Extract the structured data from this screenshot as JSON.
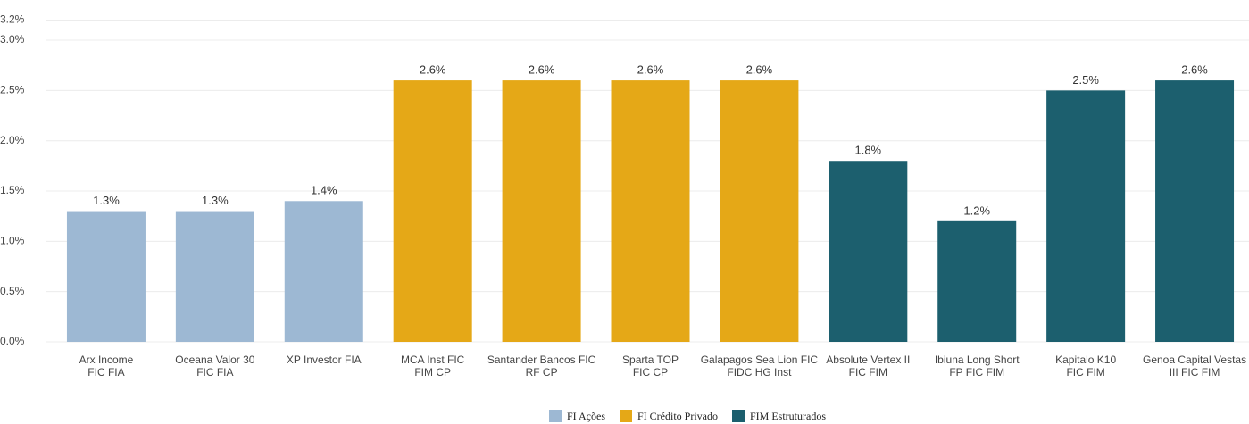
{
  "chart_data": {
    "type": "bar",
    "categories": [
      [
        "Arx Income",
        "FIC FIA"
      ],
      [
        "Oceana Valor 30",
        "FIC FIA"
      ],
      [
        "XP Investor FIA"
      ],
      [
        "MCA Inst FIC",
        "FIM CP"
      ],
      [
        "Santander Bancos FIC",
        "RF CP"
      ],
      [
        "Sparta TOP",
        "FIC CP"
      ],
      [
        "Galapagos Sea Lion FIC",
        "FIDC HG Inst"
      ],
      [
        "Absolute Vertex II",
        "FIC FIM"
      ],
      [
        "Ibiuna Long Short",
        "FP FIC FIM"
      ],
      [
        "Kapitalo K10",
        "FIC FIM"
      ],
      [
        "Genoa Capital Vestas",
        "III FIC FIM"
      ]
    ],
    "series": [
      {
        "name": "FI Ações",
        "color": "#9db8d3",
        "values": [
          1.3,
          1.3,
          1.4,
          null,
          null,
          null,
          null,
          null,
          null,
          null,
          null
        ],
        "value_labels": [
          "1.3%",
          "1.3%",
          "1.4%",
          null,
          null,
          null,
          null,
          null,
          null,
          null,
          null
        ]
      },
      {
        "name": "FI Crédito Privado",
        "color": "#e5a817",
        "values": [
          null,
          null,
          null,
          2.6,
          2.6,
          2.6,
          2.6,
          null,
          null,
          null,
          null
        ],
        "value_labels": [
          null,
          null,
          null,
          "2.6%",
          "2.6%",
          "2.6%",
          "2.6%",
          null,
          null,
          null,
          null
        ]
      },
      {
        "name": "FIM Estruturados",
        "color": "#1c5f6e",
        "values": [
          null,
          null,
          null,
          null,
          null,
          null,
          null,
          1.8,
          1.2,
          2.5,
          2.6
        ],
        "value_labels": [
          null,
          null,
          null,
          null,
          null,
          null,
          null,
          "1.8%",
          "1.2%",
          "2.5%",
          "2.6%"
        ]
      }
    ],
    "ylim": [
      0,
      3.2
    ],
    "yticks": [
      {
        "value": 0,
        "label": "0.0%"
      },
      {
        "value": 0.5,
        "label": "0.5%"
      },
      {
        "value": 1,
        "label": "1.0%"
      },
      {
        "value": 1.5,
        "label": "1.5%"
      },
      {
        "value": 2,
        "label": "2.0%"
      },
      {
        "value": 2.5,
        "label": "2.5%"
      },
      {
        "value": 3,
        "label": "3.0%"
      },
      {
        "value": 3.2,
        "label": "3.2%"
      }
    ],
    "grid": true,
    "legend": "bottom"
  }
}
